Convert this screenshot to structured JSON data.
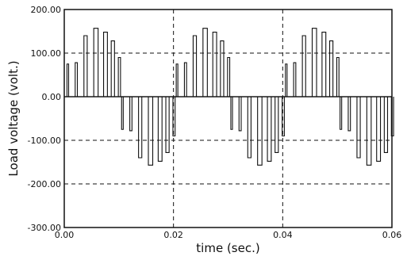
{
  "chart_data": {
    "type": "line",
    "title": "",
    "xlabel": "time (sec.)",
    "ylabel": "Load voltage (volt.)",
    "xlim": [
      0,
      0.06
    ],
    "ylim": [
      -300,
      200
    ],
    "x_ticks": [
      0,
      0.02,
      0.04,
      0.06
    ],
    "x_tick_labels": [
      "0.00",
      "0.02",
      "0.04",
      "0.06"
    ],
    "y_ticks": [
      200,
      100,
      0,
      -100,
      -200,
      -300
    ],
    "y_tick_labels": [
      "200.00",
      "100.00",
      "0.00",
      "-100.00",
      "-200.00",
      "-300.00"
    ],
    "grid": true,
    "grid_style": "dashed",
    "line_color": "#111111",
    "fundamental_period_s": 0.02,
    "pulses_per_half_cycle": [
      {
        "t_start": 0.0005,
        "t_end": 0.0008,
        "v": 75
      },
      {
        "t_start": 0.002,
        "t_end": 0.0024,
        "v": 78
      },
      {
        "t_start": 0.0036,
        "t_end": 0.0042,
        "v": 140
      },
      {
        "t_start": 0.0054,
        "t_end": 0.0062,
        "v": 157
      },
      {
        "t_start": 0.0072,
        "t_end": 0.0079,
        "v": 148
      },
      {
        "t_start": 0.0086,
        "t_end": 0.0092,
        "v": 128
      },
      {
        "t_start": 0.0099,
        "t_end": 0.0103,
        "v": 90
      }
    ]
  }
}
